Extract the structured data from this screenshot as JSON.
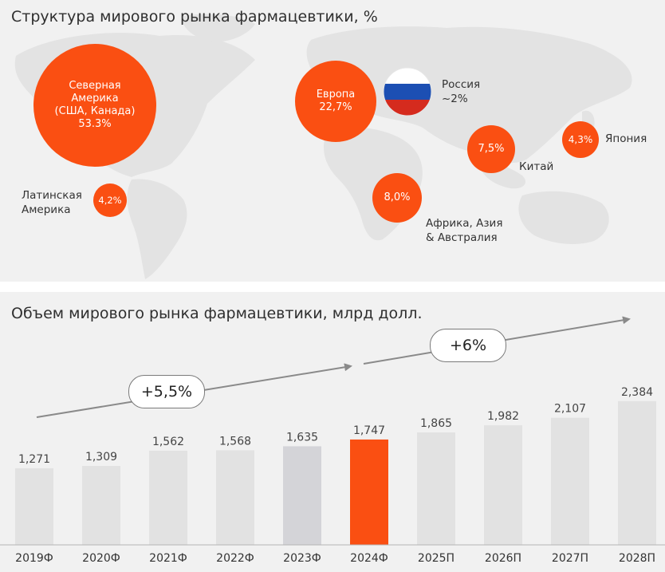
{
  "top": {
    "title": "Структура мирового рынка фармацевтики, %",
    "regions": [
      {
        "id": "north-america",
        "lines": [
          "Северная",
          "Америка",
          "(США, Канада)",
          "53.3%"
        ],
        "value": 53.3
      },
      {
        "id": "europe",
        "lines": [
          "Европа",
          "22,7%"
        ],
        "value": 22.7
      },
      {
        "id": "china",
        "lines": [
          "7,5%"
        ],
        "value": 7.5
      },
      {
        "id": "japan",
        "lines": [
          "4,3%"
        ],
        "value": 4.3
      },
      {
        "id": "africa-asia",
        "lines": [
          "8,0%"
        ],
        "value": 8.0
      },
      {
        "id": "latin-america",
        "lines": [
          "4,2%"
        ],
        "value": 4.2
      }
    ],
    "labels": {
      "russia": [
        "Россия",
        "~2%"
      ],
      "china": [
        "Китай"
      ],
      "japan": [
        "Япония"
      ],
      "africa_asia": [
        "Африка, Азия",
        "& Австралия"
      ],
      "latin_america": [
        "Латинская",
        "Америка"
      ]
    },
    "russia_flag_colors": [
      "#ffffff",
      "#1c4fb3",
      "#d52b1e"
    ]
  },
  "bottom": {
    "title": "Объем мирового рынка фармацевтики, млрд долл.",
    "growth_labels": [
      "+5,5%",
      "+6%"
    ]
  },
  "chart_data": {
    "type": "bar",
    "title": "Объем мирового рынка фармацевтики, млрд долл.",
    "categories": [
      "2019Ф",
      "2020Ф",
      "2021Ф",
      "2022Ф",
      "2023Ф",
      "2024Ф",
      "2025П",
      "2026П",
      "2027П",
      "2028П"
    ],
    "values": [
      1271,
      1309,
      1562,
      1568,
      1635,
      1747,
      1865,
      1982,
      2107,
      2384
    ],
    "value_labels": [
      "1,271",
      "1,309",
      "1,562",
      "1,568",
      "1,635",
      "1,747",
      "1,865",
      "1,982",
      "2,107",
      "2,384"
    ],
    "bar_colors": [
      "#e2e2e2",
      "#e2e2e2",
      "#e2e2e2",
      "#e2e2e2",
      "#d4d4d8",
      "#fa4f12",
      "#e2e2e2",
      "#e2e2e2",
      "#e2e2e2",
      "#e2e2e2"
    ],
    "annotations": [
      "+5,5%",
      "+6%"
    ],
    "xlabel": "",
    "ylabel": ""
  },
  "colors": {
    "accent": "#fa4f12",
    "bar": "#e2e2e2",
    "panel": "#f1f1f1",
    "map": "#e3e3e3"
  }
}
